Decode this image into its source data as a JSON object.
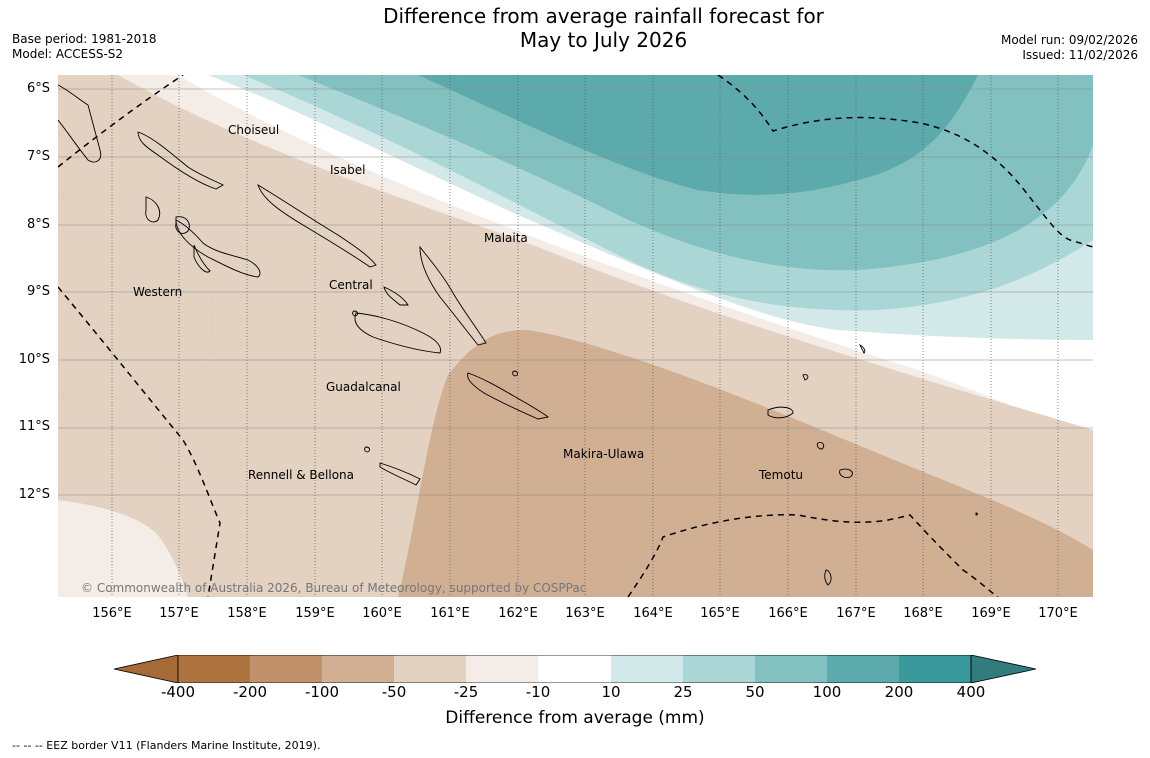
{
  "header": {
    "title_line1": "Difference from average rainfall forecast for",
    "title_line2": "May to July 2026",
    "base_period": "Base period: 1981-2018",
    "model": "Model: ACCESS-S2",
    "model_run": "Model run: 09/02/2026",
    "issued": "Issued: 11/02/2026"
  },
  "map": {
    "latitudes": [
      "6°S",
      "7°S",
      "8°S",
      "9°S",
      "10°S",
      "11°S",
      "12°S"
    ],
    "longitudes": [
      "156°E",
      "157°E",
      "158°E",
      "159°E",
      "160°E",
      "161°E",
      "162°E",
      "163°E",
      "164°E",
      "165°E",
      "166°E",
      "167°E",
      "168°E",
      "169°E",
      "170°E"
    ],
    "provinces": [
      "Choiseul",
      "Isabel",
      "Malaita",
      "Western",
      "Central",
      "Guadalcanal",
      "Rennell & Bellona",
      "Makira-Ulawa",
      "Temotu"
    ],
    "copyright": "© Commonwealth of Australia 2026, Bureau of Meteorology, supported by COSPPac"
  },
  "legend": {
    "ticks": [
      "-400",
      "-200",
      "-100",
      "-50",
      "-25",
      "-10",
      "10",
      "25",
      "50",
      "100",
      "200",
      "400"
    ],
    "colors": [
      "#a56a36",
      "#ae7440",
      "#c0916a",
      "#d1af92",
      "#e3d1c1",
      "#f4ece7",
      "#ffffff",
      "#d3e8e8",
      "#abd6d6",
      "#83c1c1",
      "#5caaab",
      "#3a9a9b",
      "#337c7d"
    ],
    "title": "Difference from average (mm)"
  },
  "footnote": "--  --  -- EEZ border V11 (Flanders Marine Institute, 2019)."
}
